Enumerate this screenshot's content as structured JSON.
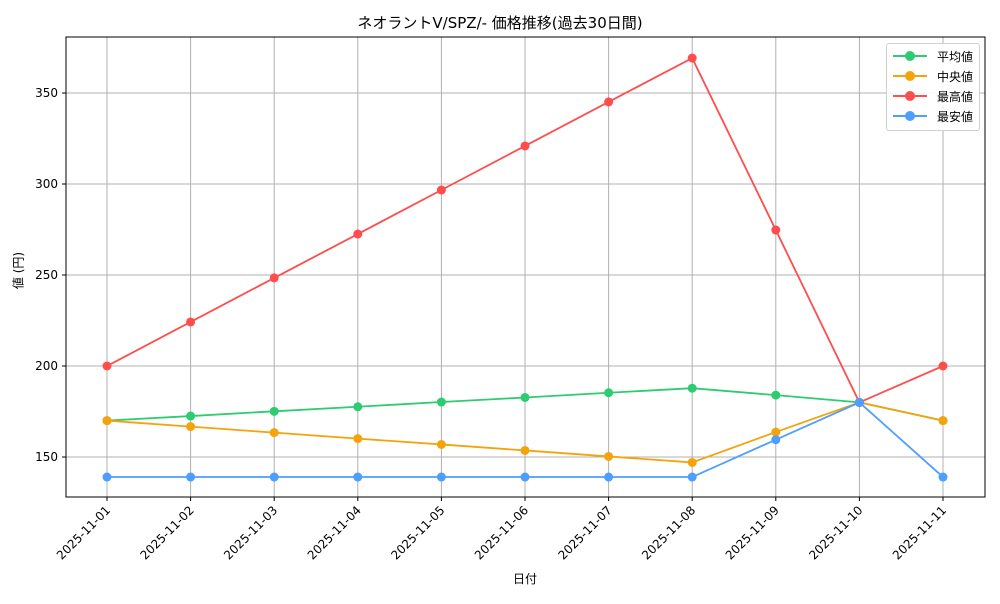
{
  "chart": {
    "title": "ネオラントV/SPZ/- 価格推移(過去30日間)",
    "xlabel": "日付",
    "ylabel": "値 (円)",
    "legend": [
      "平均値",
      "中央値",
      "最高値",
      "最安値"
    ]
  },
  "colors": {
    "平均値": "#2ecc71",
    "中央値": "#f5a30a",
    "最高値": "#ff4d4d",
    "最安値": "#4d9eff",
    "grid": "#b0b0b0",
    "axis": "#000000"
  },
  "chart_data": {
    "type": "line",
    "title": "ネオラントV/SPZ/- 価格推移(過去30日間)",
    "xlabel": "日付",
    "ylabel": "値 (円)",
    "x": [
      "2025-11-01",
      "2025-11-02",
      "2025-11-03",
      "2025-11-04",
      "2025-11-05",
      "2025-11-06",
      "2025-11-07",
      "2025-11-08",
      "2025-11-09",
      "2025-11-10",
      "2025-11-11"
    ],
    "series": [
      {
        "name": "平均値",
        "color": "#2ecc71",
        "values": [
          170,
          172.5,
          175.1,
          177.6,
          180.2,
          182.7,
          185.3,
          187.8,
          184,
          180,
          170
        ]
      },
      {
        "name": "中央値",
        "color": "#f5a30a",
        "values": [
          170,
          166.7,
          163.4,
          160.1,
          156.9,
          153.6,
          150.3,
          147,
          163.7,
          180,
          170
        ]
      },
      {
        "name": "最高値",
        "color": "#ff4d4d",
        "values": [
          200,
          224.2,
          248.4,
          272.5,
          296.7,
          320.9,
          345.1,
          369.2,
          274.7,
          180,
          200
        ]
      },
      {
        "name": "最安値",
        "color": "#4d9eff",
        "values": [
          139,
          139,
          139,
          139,
          139,
          139,
          139,
          139,
          159.5,
          180,
          139
        ]
      }
    ],
    "yticks": [
      150,
      200,
      250,
      300,
      350
    ],
    "ylim": [
      127.5,
      380.7
    ],
    "grid": true,
    "legend_position": "upper right",
    "markers": "circle"
  }
}
